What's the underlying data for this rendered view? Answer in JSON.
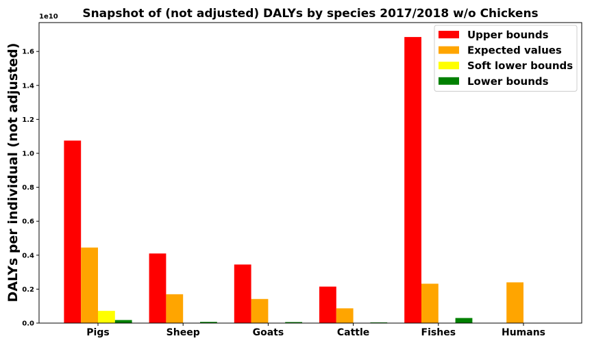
{
  "chart_data": {
    "type": "bar",
    "title": "Snapshot of (not adjusted) DALYs by species 2017/2018 w/o Chickens",
    "xlabel": "",
    "ylabel": "DALYs per individual (not adjusted)",
    "y_offset_label": "1e10",
    "ylim": [
      0,
      1.77
    ],
    "yticks": [
      "0.0",
      "0.2",
      "0.4",
      "0.6",
      "0.8",
      "1.0",
      "1.2",
      "1.4",
      "1.6"
    ],
    "categories": [
      "Pigs",
      "Sheep",
      "Goats",
      "Cattle",
      "Fishes",
      "Humans"
    ],
    "series": [
      {
        "name": "Upper bounds",
        "color": "#ff0000",
        "values": [
          1.075,
          0.41,
          0.345,
          0.215,
          1.685,
          0
        ]
      },
      {
        "name": "Expected values",
        "color": "#ffa500",
        "values": [
          0.445,
          0.17,
          0.142,
          0.087,
          0.232,
          0.24
        ]
      },
      {
        "name": "Soft lower bounds",
        "color": "#ffff00",
        "values": [
          0.072,
          0,
          0,
          0,
          0,
          0
        ]
      },
      {
        "name": "Lower bounds",
        "color": "#008000",
        "values": [
          0.018,
          0.007,
          0.006,
          0.004,
          0.03,
          0
        ]
      }
    ],
    "legend_position": "top-right",
    "grid": false
  }
}
